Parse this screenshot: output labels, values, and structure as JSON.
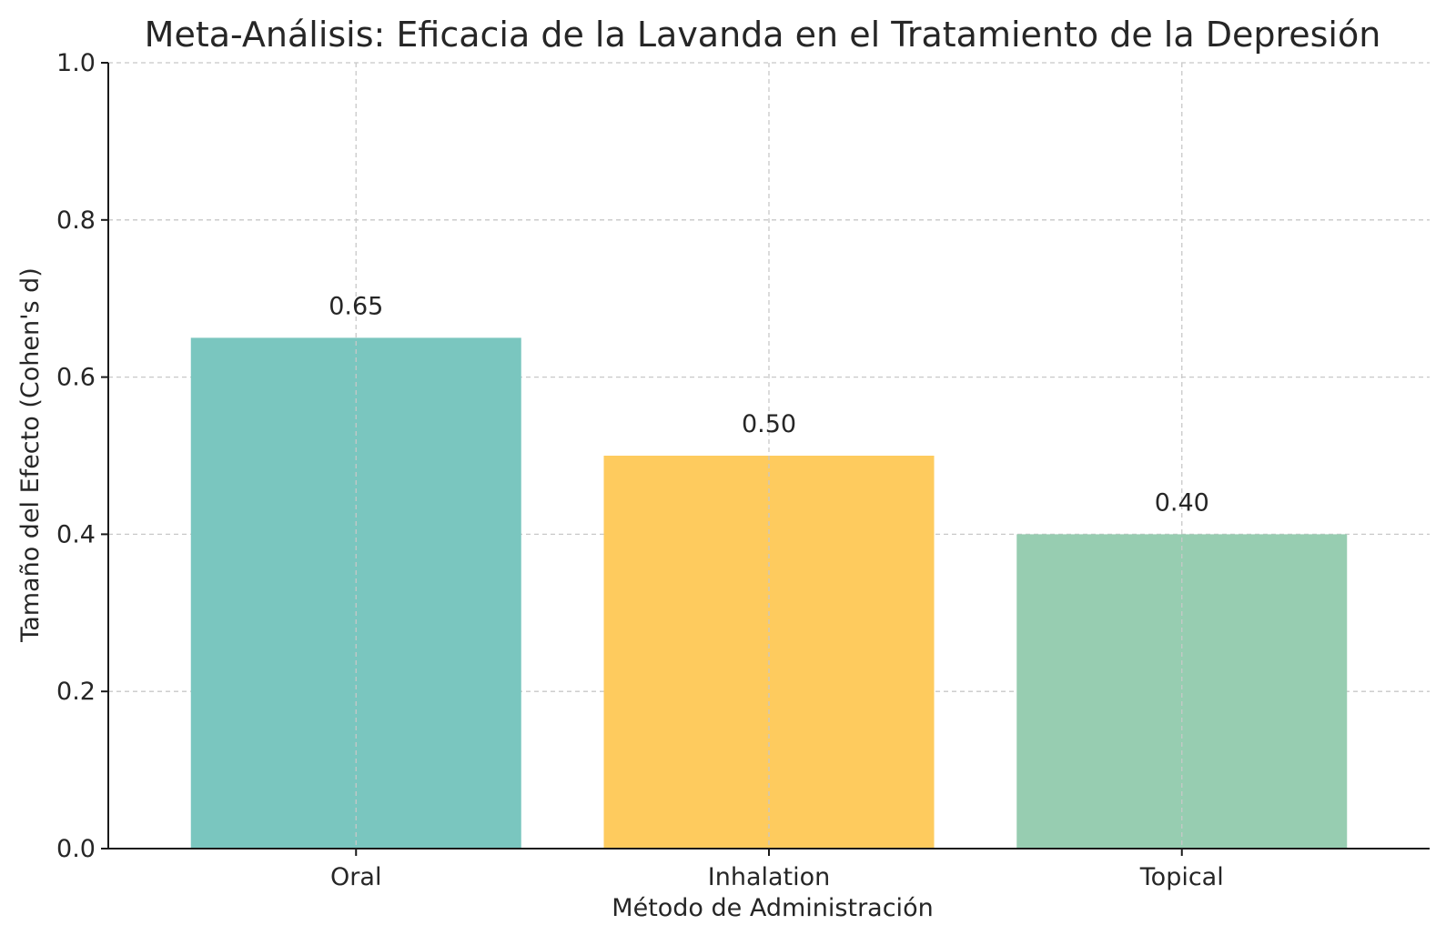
{
  "chart_data": {
    "type": "bar",
    "title": "Meta-Análisis: Eficacia de la Lavanda en el Tratamiento de la Depresión",
    "xlabel": "Método de Administración",
    "ylabel": "Tamaño del Efecto (Cohen's d)",
    "categories": [
      "Oral",
      "Inhalation",
      "Topical"
    ],
    "values": [
      0.65,
      0.5,
      0.4
    ],
    "data_labels": [
      "0.65",
      "0.50",
      "0.40"
    ],
    "colors": [
      "#7ac6bf",
      "#fecb5e",
      "#97cdb1"
    ],
    "ylim": [
      0,
      1.0
    ],
    "yticks": [
      0.0,
      0.2,
      0.4,
      0.6,
      0.8,
      1.0
    ],
    "ytick_labels": [
      "0.0",
      "0.2",
      "0.4",
      "0.6",
      "0.8",
      "1.0"
    ],
    "grid": true,
    "legend": "none"
  }
}
